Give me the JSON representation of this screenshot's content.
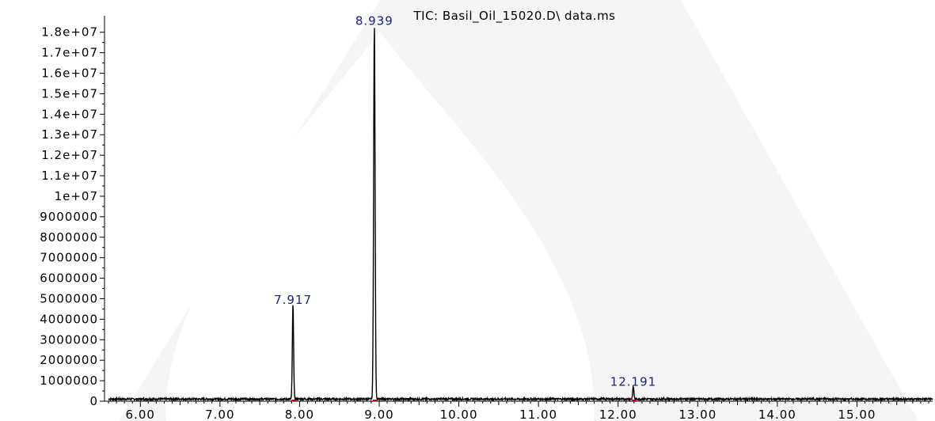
{
  "chart_data": {
    "type": "line",
    "title": "TIC: Basil_Oil_15020.D\\ data.ms",
    "xlabel": "",
    "ylabel": "",
    "xlim": [
      5.55,
      15.95
    ],
    "ylim": [
      0,
      18800000
    ],
    "x_ticks": [
      6,
      7,
      8,
      9,
      10,
      11,
      12,
      13,
      14,
      15
    ],
    "x_tick_labels": [
      "6.00",
      "7.00",
      "8.00",
      "9.00",
      "10.00",
      "11.00",
      "12.00",
      "13.00",
      "14.00",
      "15.00"
    ],
    "y_ticks": [
      0,
      1000000,
      2000000,
      3000000,
      4000000,
      5000000,
      6000000,
      7000000,
      8000000,
      9000000,
      10000000,
      11000000,
      12000000,
      13000000,
      14000000,
      15000000,
      16000000,
      17000000,
      18000000
    ],
    "y_tick_labels": [
      "0",
      "1000000",
      "2000000",
      "3000000",
      "4000000",
      "5000000",
      "6000000",
      "7000000",
      "8000000",
      "9000000",
      "1e+07",
      "1.1e+07",
      "1.2e+07",
      "1.3e+07",
      "1.4e+07",
      "1.5e+07",
      "1.6e+07",
      "1.7e+07",
      "1.8e+07"
    ],
    "peaks": [
      {
        "label": "7.917",
        "rt": 7.917,
        "height": 4600000
      },
      {
        "label": "8.939",
        "rt": 8.939,
        "height": 18200000
      },
      {
        "label": "12.191",
        "rt": 12.191,
        "height": 600000
      }
    ],
    "grid": false,
    "colors": {
      "trace": "#000000",
      "peak_label": "#1a237e",
      "peak_marker": "#cc0000",
      "watermark": "#e6e6e6"
    }
  }
}
